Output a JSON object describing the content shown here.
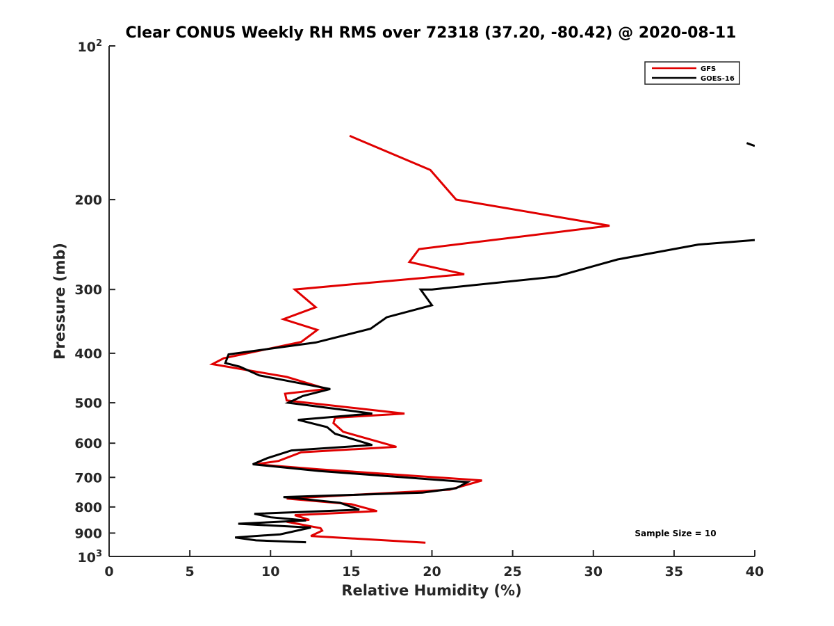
{
  "chart_data": {
    "type": "line",
    "title": "Clear CONUS Weekly RH RMS over 72318 (37.20, -80.42) @ 2020-08-11",
    "xlabel": "Relative Humidity (%)",
    "ylabel": "Pressure (mb)",
    "xlim": [
      0,
      40
    ],
    "ylim": [
      100,
      1000
    ],
    "y_scale": "log",
    "y_reversed": true,
    "grid": false,
    "legend_position": "top-right",
    "x_ticks": [
      {
        "v": 0,
        "label": "0"
      },
      {
        "v": 5,
        "label": "5"
      },
      {
        "v": 10,
        "label": "10"
      },
      {
        "v": 15,
        "label": "15"
      },
      {
        "v": 20,
        "label": "20"
      },
      {
        "v": 25,
        "label": "25"
      },
      {
        "v": 30,
        "label": "30"
      },
      {
        "v": 35,
        "label": "35"
      },
      {
        "v": 40,
        "label": "40"
      }
    ],
    "y_ticks": [
      {
        "v": 200,
        "label": "200"
      },
      {
        "v": 300,
        "label": "300"
      },
      {
        "v": 400,
        "label": "400"
      },
      {
        "v": 500,
        "label": "500"
      },
      {
        "v": 600,
        "label": "600"
      },
      {
        "v": 700,
        "label": "700"
      },
      {
        "v": 800,
        "label": "800"
      },
      {
        "v": 900,
        "label": "900"
      }
    ],
    "y_ticks_power": [
      {
        "v": 100,
        "base": "10",
        "exp": "2"
      },
      {
        "v": 1000,
        "base": "10",
        "exp": "3"
      }
    ],
    "series": [
      {
        "name": "GFS",
        "color": "#e00000",
        "points": [
          [
            14.9,
            150
          ],
          [
            19.9,
            175
          ],
          [
            21.5,
            200
          ],
          [
            31.0,
            225
          ],
          [
            19.2,
            250
          ],
          [
            18.6,
            265
          ],
          [
            22.0,
            280
          ],
          [
            11.5,
            300
          ],
          [
            12.8,
            325
          ],
          [
            10.8,
            343
          ],
          [
            12.9,
            360
          ],
          [
            11.9,
            380
          ],
          [
            7.1,
            409
          ],
          [
            6.4,
            420
          ],
          [
            11.0,
            445
          ],
          [
            13.5,
            470
          ],
          [
            10.9,
            480
          ],
          [
            11.0,
            495
          ],
          [
            18.3,
            525
          ],
          [
            14.0,
            535
          ],
          [
            13.9,
            548
          ],
          [
            14.5,
            570
          ],
          [
            17.8,
            610
          ],
          [
            11.9,
            625
          ],
          [
            10.5,
            650
          ],
          [
            9.1,
            660
          ],
          [
            13.0,
            675
          ],
          [
            23.1,
            710
          ],
          [
            21.1,
            740
          ],
          [
            11.0,
            770
          ],
          [
            15.0,
            790
          ],
          [
            16.6,
            815
          ],
          [
            11.5,
            830
          ],
          [
            12.4,
            848
          ],
          [
            11.0,
            855
          ],
          [
            13.1,
            880
          ],
          [
            13.2,
            890
          ],
          [
            12.5,
            912
          ],
          [
            19.6,
            940
          ]
        ]
      },
      {
        "name": "GOES-16",
        "color": "#000000",
        "segments": [
          [
            [
              39.5,
              155
            ],
            [
              40.0,
              157
            ]
          ],
          [
            [
              40.0,
              240
            ],
            [
              36.5,
              245
            ],
            [
              31.5,
              262
            ],
            [
              27.7,
              283
            ],
            [
              20.0,
              300
            ],
            [
              19.3,
              300
            ],
            [
              20.0,
              322
            ],
            [
              17.2,
              340
            ],
            [
              16.2,
              358
            ],
            [
              12.8,
              381
            ],
            [
              7.4,
              402
            ],
            [
              7.2,
              418
            ],
            [
              8.1,
              425
            ],
            [
              9.3,
              442
            ],
            [
              13.7,
              470
            ],
            [
              12.0,
              485
            ],
            [
              11.1,
              500
            ],
            [
              16.3,
              525
            ],
            [
              11.7,
              540
            ],
            [
              13.5,
              558
            ],
            [
              14.0,
              575
            ],
            [
              16.3,
              605
            ],
            [
              11.3,
              620
            ],
            [
              9.8,
              642
            ],
            [
              8.9,
              660
            ],
            [
              13.0,
              680
            ],
            [
              22.2,
              715
            ],
            [
              21.5,
              735
            ],
            [
              19.4,
              750
            ],
            [
              10.8,
              765
            ],
            [
              14.3,
              785
            ],
            [
              15.5,
              810
            ],
            [
              9.0,
              825
            ],
            [
              10.0,
              838
            ],
            [
              12.2,
              850
            ],
            [
              8.0,
              863
            ],
            [
              12.5,
              878
            ],
            [
              10.6,
              905
            ],
            [
              7.8,
              918
            ],
            [
              9.1,
              930
            ],
            [
              12.2,
              938
            ]
          ]
        ]
      }
    ],
    "annotation": "Sample Size = 10"
  }
}
